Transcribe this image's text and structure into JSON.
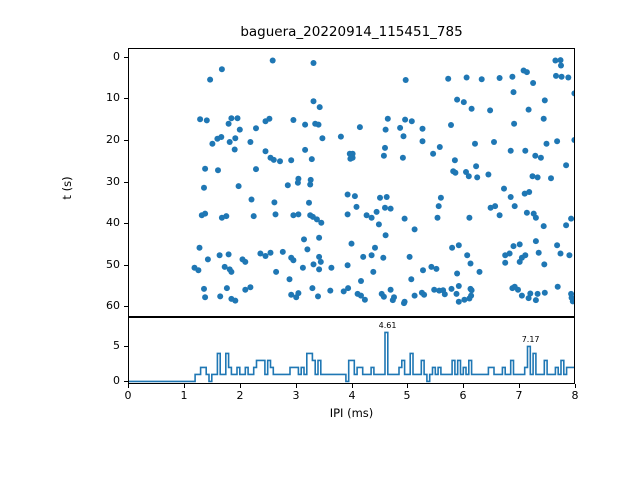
{
  "figure": {
    "title": "baguera_20220914_115451_785",
    "accent_color": "#1f77b4",
    "axis_color": "#000000",
    "background": "#ffffff"
  },
  "chart_data": [
    {
      "type": "scatter",
      "title": "baguera_20220914_115451_785",
      "xlabel": "",
      "ylabel": "t (s)",
      "xlim": [
        0,
        8
      ],
      "ylim": [
        -2.1,
        62.55
      ],
      "y_inverted": true,
      "yticks": [
        0,
        10,
        20,
        30,
        40,
        50,
        60
      ],
      "grid": false,
      "marker_color": "#1f77b4",
      "points": [
        [
          2.59,
          0.9
        ],
        [
          3.32,
          1.5
        ],
        [
          1.68,
          3.0
        ],
        [
          1.47,
          5.5
        ],
        [
          4.97,
          5.6
        ],
        [
          5.73,
          5.3
        ],
        [
          6.06,
          5.0
        ],
        [
          6.33,
          5.4
        ],
        [
          6.65,
          5.1
        ],
        [
          6.88,
          4.8
        ],
        [
          7.08,
          3.3
        ],
        [
          7.14,
          3.7
        ],
        [
          7.65,
          0.9
        ],
        [
          7.74,
          0.8
        ],
        [
          7.75,
          2.1
        ],
        [
          7.66,
          4.6
        ],
        [
          7.76,
          4.8
        ],
        [
          7.88,
          5.0
        ],
        [
          3.32,
          10.7
        ],
        [
          3.43,
          12.1
        ],
        [
          7.25,
          6.3
        ],
        [
          6.9,
          8.5
        ],
        [
          7.99,
          8.8
        ],
        [
          7.46,
          10.5
        ],
        [
          5.89,
          10.3
        ],
        [
          6.01,
          10.9
        ],
        [
          6.15,
          12.5
        ],
        [
          6.48,
          12.9
        ],
        [
          7.17,
          12.7
        ],
        [
          1.29,
          15.0
        ],
        [
          1.41,
          15.3
        ],
        [
          1.85,
          14.8
        ],
        [
          1.96,
          14.8
        ],
        [
          1.8,
          16.1
        ],
        [
          2.46,
          15.5
        ],
        [
          2.53,
          14.9
        ],
        [
          2.96,
          15.2
        ],
        [
          3.17,
          16.3
        ],
        [
          3.35,
          16.1
        ],
        [
          3.41,
          16.3
        ],
        [
          2.0,
          17.5
        ],
        [
          2.29,
          17.2
        ],
        [
          1.6,
          19.7
        ],
        [
          1.67,
          19.3
        ],
        [
          1.82,
          20.5
        ],
        [
          1.92,
          19.6
        ],
        [
          2.19,
          20.5
        ],
        [
          3.48,
          19.6
        ],
        [
          3.81,
          19.2
        ],
        [
          4.65,
          14.9
        ],
        [
          4.96,
          15.1
        ],
        [
          5.08,
          15.5
        ],
        [
          4.15,
          16.9
        ],
        [
          4.61,
          17.5
        ],
        [
          4.87,
          17.1
        ],
        [
          4.93,
          19.1
        ],
        [
          5.27,
          17.3
        ],
        [
          5.78,
          16.4
        ],
        [
          6.91,
          16.1
        ],
        [
          7.44,
          14.9
        ],
        [
          7.99,
          20.0
        ],
        [
          1.51,
          20.9
        ],
        [
          1.91,
          22.3
        ],
        [
          2.46,
          22.7
        ],
        [
          3.17,
          22.4
        ],
        [
          2.55,
          24.3
        ],
        [
          2.61,
          24.8
        ],
        [
          2.72,
          25.1
        ],
        [
          2.92,
          24.9
        ],
        [
          3.29,
          24.6
        ],
        [
          3.97,
          23.3
        ],
        [
          3.98,
          24.5
        ],
        [
          1.38,
          26.9
        ],
        [
          1.61,
          27.3
        ],
        [
          2.29,
          27.0
        ],
        [
          3.05,
          29.3
        ],
        [
          3.27,
          29.6
        ],
        [
          7.49,
          20.9
        ],
        [
          7.68,
          20.3
        ],
        [
          5.27,
          20.3
        ],
        [
          5.58,
          21.7
        ],
        [
          5.46,
          23.3
        ],
        [
          6.21,
          20.9
        ],
        [
          6.55,
          20.5
        ],
        [
          6.85,
          22.6
        ],
        [
          7.11,
          22.6
        ],
        [
          7.29,
          23.8
        ],
        [
          4.02,
          23.3
        ],
        [
          4.02,
          24.3
        ],
        [
          4.58,
          23.8
        ],
        [
          4.6,
          21.9
        ],
        [
          4.92,
          24.3
        ],
        [
          5.85,
          24.9
        ],
        [
          5.82,
          27.5
        ],
        [
          5.86,
          27.9
        ],
        [
          6.05,
          27.7
        ],
        [
          6.1,
          28.7
        ],
        [
          6.23,
          26.3
        ],
        [
          6.25,
          29.0
        ],
        [
          6.45,
          28.3
        ],
        [
          7.39,
          24.3
        ],
        [
          7.84,
          26.1
        ],
        [
          7.24,
          28.7
        ],
        [
          7.33,
          29.0
        ],
        [
          7.57,
          29.2
        ],
        [
          1.36,
          31.5
        ],
        [
          1.98,
          31.1
        ],
        [
          2.86,
          30.9
        ],
        [
          3.04,
          30.3
        ],
        [
          3.26,
          30.7
        ],
        [
          3.93,
          33.1
        ],
        [
          2.21,
          34.3
        ],
        [
          2.62,
          35.0
        ],
        [
          3.24,
          35.1
        ],
        [
          1.32,
          38.1
        ],
        [
          1.38,
          37.7
        ],
        [
          1.68,
          38.7
        ],
        [
          1.76,
          38.3
        ],
        [
          2.25,
          38.3
        ],
        [
          2.64,
          37.9
        ],
        [
          2.96,
          38.1
        ],
        [
          3.05,
          37.9
        ],
        [
          3.26,
          38.1
        ],
        [
          3.31,
          38.5
        ],
        [
          3.38,
          39.1
        ],
        [
          3.46,
          39.9
        ],
        [
          3.93,
          37.9
        ],
        [
          3.15,
          43.9
        ],
        [
          3.42,
          43.5
        ],
        [
          4.06,
          33.5
        ],
        [
          4.51,
          33.9
        ],
        [
          4.63,
          33.7
        ],
        [
          4.09,
          36.1
        ],
        [
          4.27,
          38.1
        ],
        [
          4.36,
          38.7
        ],
        [
          4.45,
          37.3
        ],
        [
          4.49,
          40.3
        ],
        [
          4.6,
          36.3
        ],
        [
          4.7,
          36.5
        ],
        [
          4.61,
          42.9
        ],
        [
          4.95,
          38.9
        ],
        [
          5.13,
          41.5
        ],
        [
          5.6,
          33.9
        ],
        [
          5.56,
          35.9
        ],
        [
          5.54,
          38.7
        ],
        [
          6.11,
          38.7
        ],
        [
          6.49,
          36.3
        ],
        [
          6.57,
          35.9
        ],
        [
          6.65,
          38.1
        ],
        [
          6.73,
          31.7
        ],
        [
          6.85,
          33.7
        ],
        [
          6.92,
          35.9
        ],
        [
          7.1,
          32.9
        ],
        [
          7.18,
          32.5
        ],
        [
          7.14,
          37.5
        ],
        [
          7.26,
          37.7
        ],
        [
          7.3,
          38.7
        ],
        [
          7.44,
          40.7
        ],
        [
          7.84,
          40.5
        ],
        [
          7.93,
          38.9
        ],
        [
          1.28,
          45.9
        ],
        [
          1.43,
          48.7
        ],
        [
          1.64,
          47.7
        ],
        [
          1.8,
          47.5
        ],
        [
          2.05,
          48.7
        ],
        [
          2.37,
          47.3
        ],
        [
          2.46,
          47.9
        ],
        [
          2.55,
          47.1
        ],
        [
          2.77,
          46.9
        ],
        [
          2.92,
          48.3
        ],
        [
          2.96,
          48.9
        ],
        [
          3.21,
          46.3
        ],
        [
          3.42,
          48.1
        ],
        [
          3.45,
          49.3
        ],
        [
          1.19,
          50.7
        ],
        [
          1.26,
          51.3
        ],
        [
          1.73,
          50.5
        ],
        [
          1.82,
          51.1
        ],
        [
          1.85,
          51.7
        ],
        [
          2.1,
          49.3
        ],
        [
          2.65,
          51.7
        ],
        [
          2.89,
          53.5
        ],
        [
          3.13,
          50.7
        ],
        [
          3.32,
          49.9
        ],
        [
          3.42,
          51.1
        ],
        [
          3.64,
          50.7
        ],
        [
          3.93,
          50.1
        ],
        [
          4.0,
          44.9
        ],
        [
          4.42,
          45.9
        ],
        [
          4.36,
          47.7
        ],
        [
          4.57,
          48.3
        ],
        [
          4.21,
          48.1
        ],
        [
          4.39,
          51.7
        ],
        [
          4.17,
          53.9
        ],
        [
          5.07,
          53.5
        ],
        [
          5.28,
          51.3
        ],
        [
          5.43,
          50.5
        ],
        [
          5.52,
          51.0
        ],
        [
          5.04,
          48.1
        ],
        [
          5.8,
          45.9
        ],
        [
          5.92,
          45.3
        ],
        [
          6.07,
          47.7
        ],
        [
          6.13,
          49.7
        ],
        [
          6.29,
          51.7
        ],
        [
          5.89,
          52.1
        ],
        [
          6.75,
          47.7
        ],
        [
          6.83,
          47.3
        ],
        [
          6.75,
          49.5
        ],
        [
          6.9,
          45.5
        ],
        [
          7.01,
          45.1
        ],
        [
          7.05,
          48.3
        ],
        [
          7.01,
          49.3
        ],
        [
          7.11,
          47.7
        ],
        [
          7.3,
          44.3
        ],
        [
          7.35,
          47.1
        ],
        [
          7.45,
          49.9
        ],
        [
          7.68,
          45.3
        ],
        [
          7.74,
          47.3
        ],
        [
          7.9,
          47.7
        ],
        [
          1.36,
          55.8
        ],
        [
          1.38,
          57.8
        ],
        [
          1.65,
          57.6
        ],
        [
          1.77,
          55.6
        ],
        [
          1.85,
          58.2
        ],
        [
          1.92,
          58.6
        ],
        [
          2.1,
          56.0
        ],
        [
          2.19,
          55.4
        ],
        [
          2.92,
          57.2
        ],
        [
          3.01,
          57.8
        ],
        [
          3.05,
          56.8
        ],
        [
          3.3,
          55.6
        ],
        [
          3.4,
          57.6
        ],
        [
          3.62,
          56.2
        ],
        [
          3.86,
          56.4
        ],
        [
          3.94,
          55.6
        ],
        [
          4.11,
          57.0
        ],
        [
          4.17,
          57.4
        ],
        [
          4.24,
          58.4
        ],
        [
          4.54,
          57.0
        ],
        [
          4.7,
          56.0
        ],
        [
          4.76,
          57.8
        ],
        [
          4.94,
          59.2
        ],
        [
          5.13,
          57.4
        ],
        [
          5.3,
          57.2
        ],
        [
          5.48,
          56.0
        ],
        [
          5.57,
          56.2
        ],
        [
          5.79,
          55.8
        ],
        [
          5.88,
          57.0
        ],
        [
          6.02,
          58.4
        ],
        [
          6.13,
          55.8
        ],
        [
          6.14,
          57.4
        ],
        [
          6.88,
          55.6
        ],
        [
          6.98,
          56.0
        ],
        [
          7.05,
          57.4
        ],
        [
          7.17,
          58.0
        ],
        [
          7.33,
          57.0
        ],
        [
          7.93,
          57.0
        ],
        [
          7.96,
          58.8
        ],
        [
          4.58,
          57.7
        ],
        [
          4.74,
          58.5
        ],
        [
          4.95,
          58.9
        ],
        [
          5.26,
          56.7
        ],
        [
          5.92,
          55.1
        ],
        [
          6.15,
          56.1
        ],
        [
          6.11,
          58.1
        ],
        [
          5.64,
          56.1
        ],
        [
          5.67,
          57.1
        ],
        [
          5.92,
          58.9
        ],
        [
          6.92,
          55.3
        ],
        [
          7.2,
          56.9
        ],
        [
          7.3,
          58.5
        ],
        [
          7.46,
          56.7
        ],
        [
          7.94,
          57.9
        ],
        [
          7.69,
          55.3
        ]
      ]
    },
    {
      "type": "bar",
      "xlabel": "IPI (ms)",
      "ylabel": "",
      "xlim": [
        0,
        8
      ],
      "ylim": [
        -0.37,
        9.2
      ],
      "xticks": [
        0,
        1,
        2,
        3,
        4,
        5,
        6,
        7,
        8
      ],
      "yticks": [
        0,
        5
      ],
      "grid": false,
      "bar_color": "#1f77b4",
      "bin_start": 0,
      "bin_width": 0.05,
      "counts": [
        0,
        0,
        0,
        0,
        0,
        0,
        0,
        0,
        0,
        0,
        0,
        0,
        0,
        0,
        0,
        0,
        0,
        0,
        0,
        0,
        0,
        0,
        0,
        0,
        1,
        1,
        2,
        2,
        1,
        0,
        1,
        1,
        4,
        1,
        1,
        4,
        2,
        1,
        1,
        2,
        1,
        1,
        2,
        1,
        1,
        2,
        3,
        3,
        3,
        1,
        3,
        2,
        1,
        1,
        1,
        1,
        1,
        1,
        2,
        2,
        2,
        1,
        2,
        1,
        4,
        4,
        3,
        1,
        3,
        1,
        1,
        1,
        1,
        1,
        1,
        1,
        1,
        1,
        0,
        3,
        3,
        1,
        2,
        2,
        1,
        1,
        1,
        2,
        1,
        1,
        1,
        1,
        7,
        1,
        1,
        1,
        1,
        2,
        3,
        1,
        1,
        4,
        1,
        1,
        1,
        3,
        1,
        0,
        1,
        2,
        1,
        2,
        1,
        1,
        1,
        1,
        3,
        1,
        3,
        1,
        2,
        1,
        3,
        1,
        1,
        1,
        1,
        1,
        1,
        2,
        2,
        1,
        1,
        1,
        2,
        1,
        1,
        3,
        1,
        1,
        1,
        1,
        2,
        5,
        1,
        4,
        1,
        1,
        1,
        3,
        1,
        1,
        1,
        2,
        1,
        3,
        1,
        2,
        2,
        2
      ],
      "annotations": [
        {
          "label": "4.61",
          "x": 4.61,
          "y": 7
        },
        {
          "label": "7.17",
          "x": 7.17,
          "y": 5
        }
      ]
    }
  ]
}
